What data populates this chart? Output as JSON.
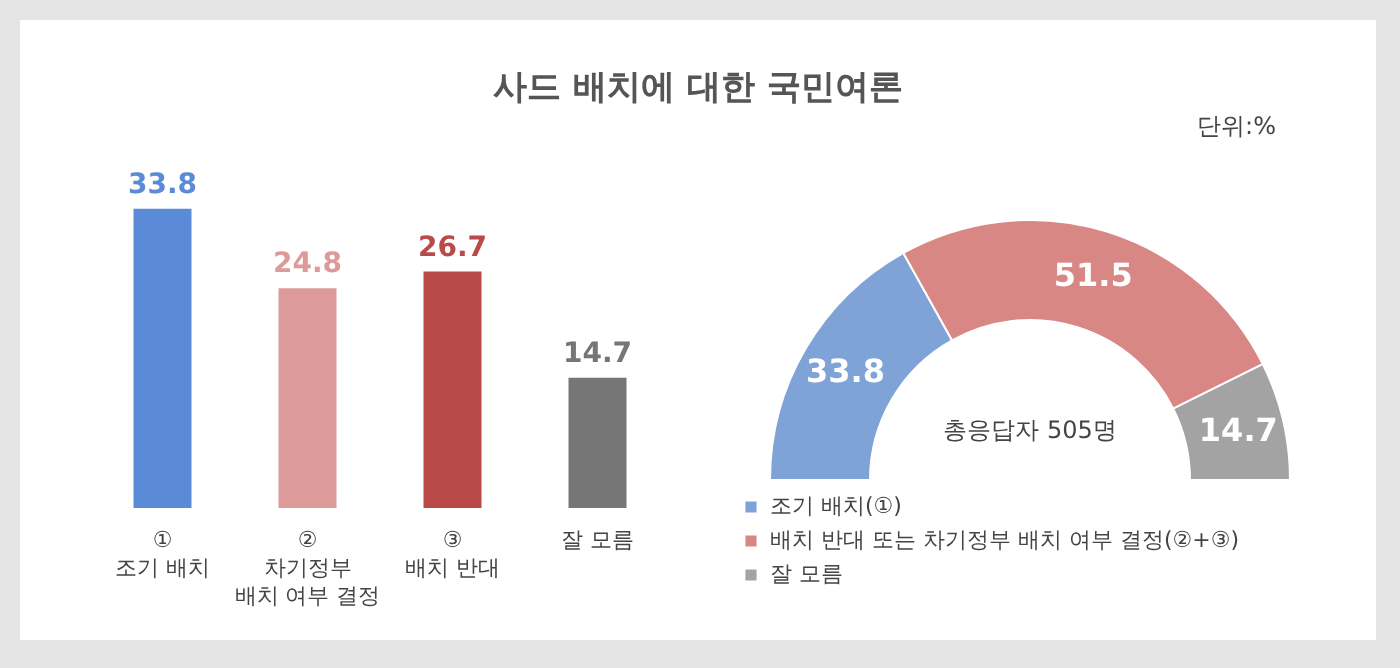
{
  "chart_data": [
    {
      "type": "bar",
      "title": "사드 배치에 대한 국민여론",
      "categories": [
        "①\n조기 배치",
        "②\n차기정부\n배치 여부 결정",
        "③\n배치 반대",
        "잘 모름"
      ],
      "values": [
        33.8,
        24.8,
        26.7,
        14.7
      ],
      "colors": [
        "#5b8bd6",
        "#dc9b99",
        "#b94a48",
        "#767676"
      ],
      "data_labels": true,
      "tick_labels": "x"
    },
    {
      "type": "donut",
      "annotations": [
        "단위:%",
        "총응답자 505명"
      ],
      "categories": [
        "조기 배치(①)",
        "배치 반대 또는 차기정부 배치 여부 결정(②+③)",
        "잘 모름"
      ],
      "values": [
        33.8,
        51.5,
        14.7
      ],
      "colors": [
        "#7fa3d6",
        "#d98785",
        "#a3a3a3"
      ],
      "data_labels": true,
      "legend": "bottom"
    }
  ]
}
